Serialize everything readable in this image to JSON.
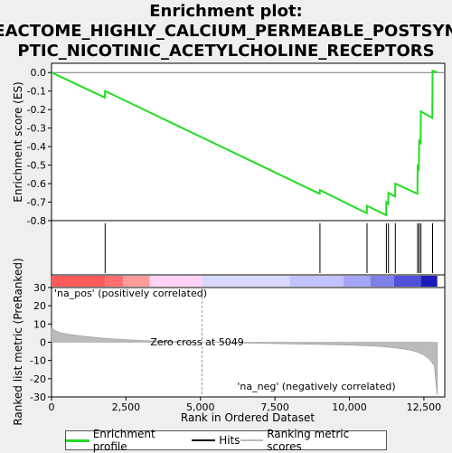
{
  "title_line1": "Enrichment plot:",
  "title_line2": "REACTOME_HIGHLY_CALCIUM_PERMEABLE_POSTSYNA",
  "title_line3": "PTIC_NICOTINIC_ACETYLCHOLINE_RECEPTORS",
  "colors": {
    "enrichment": "#22dd22",
    "hits": "#000000",
    "ranking": "#bbbbbb",
    "pos_label": "#cc0000",
    "neg_label": "#0000cc"
  },
  "legend": {
    "enrichment_label": "Enrichment profile",
    "hits_label": "Hits",
    "ranking_label": "Ranking metric scores"
  },
  "chart_data": {
    "type": "line",
    "title": "Enrichment plot: REACTOME_HIGHLY_CALCIUM_PERMEABLE_POSTSYNAPTIC_NICOTINIC_ACETYLCHOLINE_RECEPTORS",
    "xlabel": "Rank in Ordered Dataset",
    "ylabel_top": "Enrichment score (ES)",
    "ylabel_bottom": "Ranked list metric (PreRanked)",
    "xlim": [
      0,
      13200
    ],
    "x_ticks": [
      0,
      2500,
      5000,
      7500,
      10000,
      12500
    ],
    "x_tick_labels": [
      "0",
      "2,500",
      "5,000",
      "7,500",
      "10,000",
      "12,500"
    ],
    "es_ylim": [
      -0.8,
      0.05
    ],
    "es_ticks": [
      0.0,
      -0.1,
      -0.2,
      -0.3,
      -0.4,
      -0.5,
      -0.6,
      -0.7,
      -0.8
    ],
    "es_tick_labels": [
      "0.0",
      "-0.1",
      "-0.2",
      "-0.3",
      "-0.4",
      "-0.5",
      "-0.6",
      "-0.7",
      "-0.8"
    ],
    "es_points": [
      [
        0,
        0.0
      ],
      [
        1790,
        -0.135
      ],
      [
        1800,
        -0.1
      ],
      [
        9000,
        -0.655
      ],
      [
        9010,
        -0.635
      ],
      [
        10580,
        -0.76
      ],
      [
        10590,
        -0.72
      ],
      [
        11230,
        -0.77
      ],
      [
        11240,
        -0.7
      ],
      [
        11300,
        -0.71
      ],
      [
        11310,
        -0.65
      ],
      [
        11530,
        -0.67
      ],
      [
        11540,
        -0.6
      ],
      [
        12280,
        -0.655
      ],
      [
        12290,
        -0.51
      ],
      [
        12330,
        -0.52
      ],
      [
        12340,
        -0.37
      ],
      [
        12390,
        -0.38
      ],
      [
        12400,
        -0.21
      ],
      [
        12780,
        -0.245
      ],
      [
        12790,
        0.01
      ],
      [
        12950,
        0.0
      ]
    ],
    "hits": [
      1800,
      9010,
      10590,
      11240,
      11310,
      11540,
      12290,
      12340,
      12400,
      12790
    ],
    "metric_ylim": [
      -30,
      30
    ],
    "metric_ticks": [
      30,
      20,
      10,
      0,
      -10,
      -20,
      -30
    ],
    "metric_tick_labels": [
      "30",
      "20",
      "10",
      "0",
      "-10",
      "-20",
      "-30"
    ],
    "metric_points": [
      [
        0,
        8.0
      ],
      [
        100,
        6.5
      ],
      [
        300,
        5.2
      ],
      [
        600,
        4.3
      ],
      [
        1000,
        3.4
      ],
      [
        1500,
        2.6
      ],
      [
        2000,
        1.9
      ],
      [
        2500,
        1.4
      ],
      [
        3000,
        1.0
      ],
      [
        3500,
        0.7
      ],
      [
        4000,
        0.45
      ],
      [
        4500,
        0.2
      ],
      [
        5049,
        0.0
      ],
      [
        6000,
        -0.3
      ],
      [
        7000,
        -0.6
      ],
      [
        8000,
        -0.9
      ],
      [
        9000,
        -1.2
      ],
      [
        10000,
        -1.6
      ],
      [
        10500,
        -1.9
      ],
      [
        11000,
        -2.3
      ],
      [
        11500,
        -3.0
      ],
      [
        12000,
        -4.2
      ],
      [
        12300,
        -5.5
      ],
      [
        12500,
        -7.0
      ],
      [
        12700,
        -9.5
      ],
      [
        12850,
        -13.0
      ],
      [
        12900,
        -22.0
      ],
      [
        12950,
        -29.0
      ]
    ],
    "zero_cross_rank": 5049,
    "zero_cross_label": "Zero cross at 5049",
    "pos_label": "'na_pos' (positively correlated)",
    "neg_label": "'na_neg' (negatively correlated)",
    "heatmap_segments": [
      {
        "start": 0,
        "end": 1800,
        "color": "#ff5a5a"
      },
      {
        "start": 1800,
        "end": 2400,
        "color": "#ff6f6f"
      },
      {
        "start": 2400,
        "end": 3300,
        "color": "#ff9a9a"
      },
      {
        "start": 3300,
        "end": 5049,
        "color": "#ffd2f5"
      },
      {
        "start": 5049,
        "end": 8000,
        "color": "#d8d8ff"
      },
      {
        "start": 8000,
        "end": 9800,
        "color": "#c2c2ff"
      },
      {
        "start": 9800,
        "end": 10700,
        "color": "#a5a5f5"
      },
      {
        "start": 10700,
        "end": 11500,
        "color": "#7f7fe8"
      },
      {
        "start": 11500,
        "end": 12400,
        "color": "#5050d8"
      },
      {
        "start": 12400,
        "end": 12950,
        "color": "#1c1cbb"
      }
    ]
  }
}
